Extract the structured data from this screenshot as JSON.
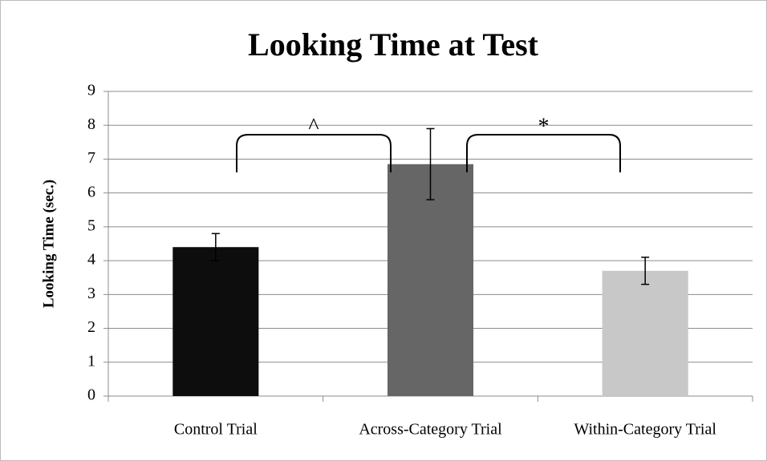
{
  "chart_data": {
    "type": "bar",
    "title": "Looking Time at Test",
    "ylabel": "Looking Time (sec.)",
    "categories": [
      "Control Trial",
      "Across-Category Trial",
      "Within-Category Trial"
    ],
    "values": [
      4.4,
      6.85,
      3.7
    ],
    "errors": [
      0.4,
      1.05,
      0.4
    ],
    "colors": [
      "#0d0d0d",
      "#666666",
      "#c8c8c8"
    ],
    "ylim": [
      0,
      9
    ],
    "yticks": [
      0,
      1,
      2,
      3,
      4,
      5,
      6,
      7,
      8,
      9
    ],
    "grid": true,
    "annotations": [
      "^",
      "*"
    ]
  }
}
